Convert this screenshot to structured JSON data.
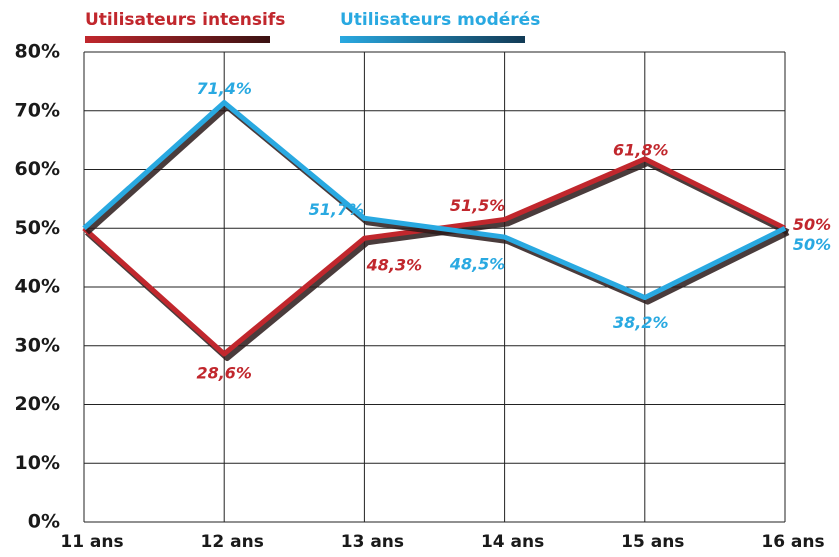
{
  "chart_data": {
    "type": "line",
    "categories": [
      "11 ans",
      "12 ans",
      "13 ans",
      "14 ans",
      "15 ans",
      "16 ans"
    ],
    "series": [
      {
        "name": "Utilisateurs intensifs",
        "color": "#c1272d",
        "values": [
          50,
          28.6,
          48.3,
          51.5,
          61.8,
          50
        ],
        "value_labels": [
          null,
          "28,6%",
          "48,3%",
          "51,5%",
          "61,8%",
          "50%"
        ]
      },
      {
        "name": "Utilisateurs modérés",
        "color": "#29a9e1",
        "values": [
          50,
          71.4,
          51.7,
          48.5,
          38.2,
          50
        ],
        "value_labels": [
          null,
          "71,4%",
          "51,7%",
          "48,5%",
          "38,2%",
          "50%"
        ]
      }
    ],
    "ylim": [
      0,
      80
    ],
    "yticks": [
      {
        "value": 0,
        "label": "0%"
      },
      {
        "value": 10,
        "label": "10%"
      },
      {
        "value": 20,
        "label": "20%"
      },
      {
        "value": 30,
        "label": "30%"
      },
      {
        "value": 40,
        "label": "40%"
      },
      {
        "value": 50,
        "label": "50%"
      },
      {
        "value": 60,
        "label": "60%"
      },
      {
        "value": 70,
        "label": "70%"
      },
      {
        "value": 80,
        "label": "80%"
      }
    ],
    "grid": true,
    "legend": "top"
  }
}
